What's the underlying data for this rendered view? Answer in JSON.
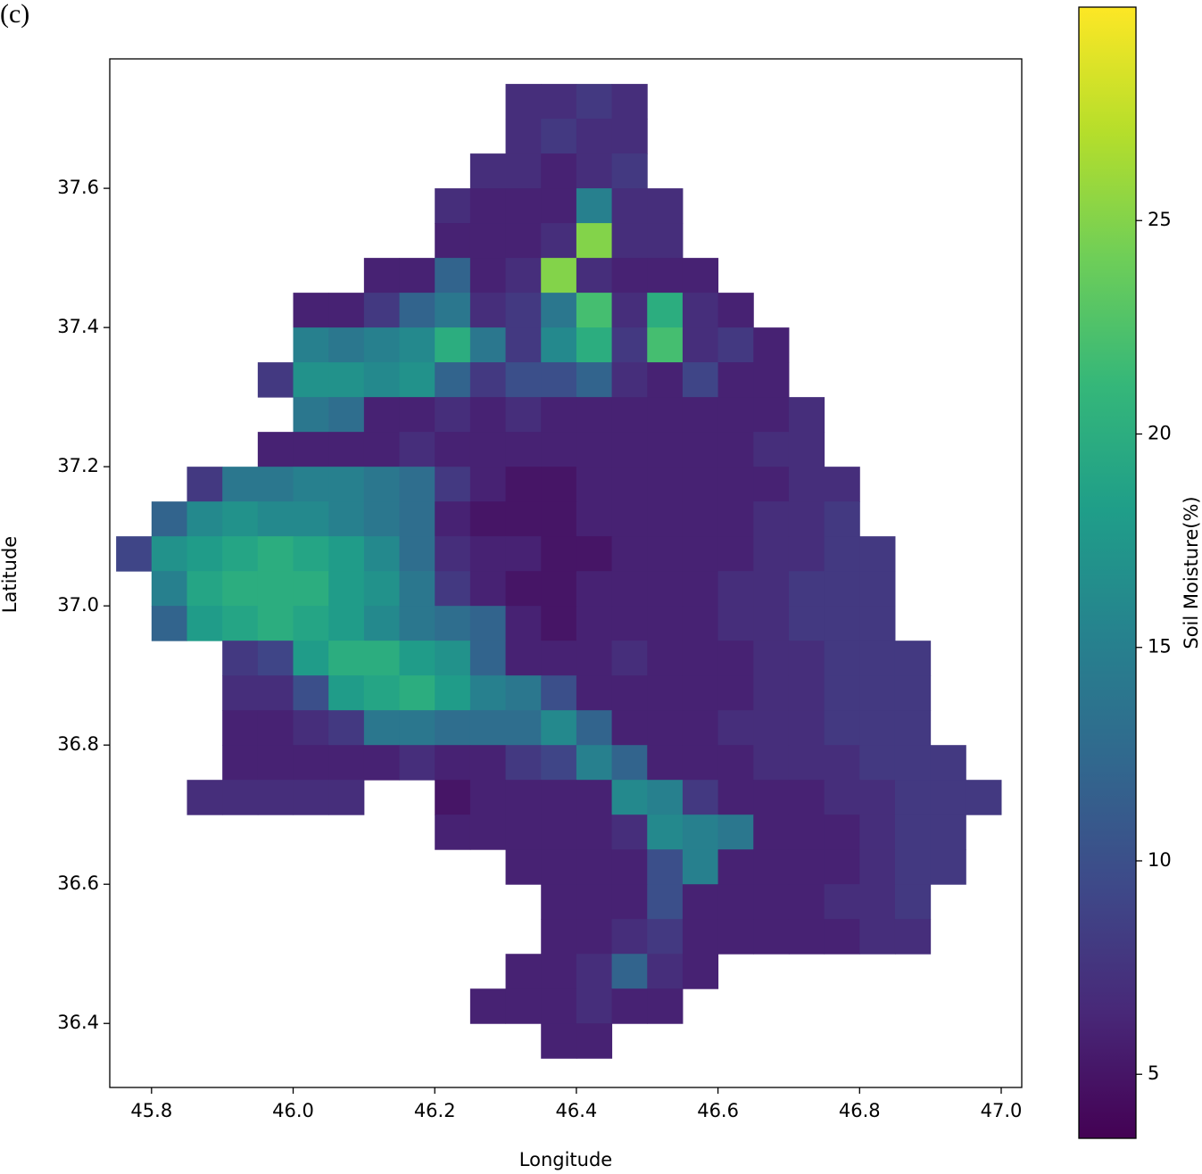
{
  "chart_data": {
    "type": "heatmap",
    "panel_label": "(c)",
    "xlabel": "Longitude",
    "ylabel": "Latitude",
    "xlim": [
      45.741,
      47.029
    ],
    "ylim": [
      36.308,
      37.786
    ],
    "xticks": [
      45.8,
      {
        "value": 46,
        "label": "46.0"
      },
      46.2,
      46.4,
      46.6,
      46.8,
      {
        "value": 47,
        "label": "47.0"
      }
    ],
    "yticks": [
      36.4,
      36.6,
      36.8,
      {
        "value": 37,
        "label": "37.0"
      },
      37.2,
      37.4,
      37.6
    ],
    "colormap": "viridis",
    "clim": [
      3.5,
      30
    ],
    "cticks": [
      5,
      10,
      15,
      20,
      25
    ],
    "clabel": "Soil Moisture(%)",
    "x": [
      45.775,
      45.825,
      45.875,
      45.925,
      45.975,
      46.025,
      46.075,
      46.125,
      46.175,
      46.225,
      46.275,
      46.325,
      46.375,
      46.425,
      46.475,
      46.525,
      46.575,
      46.625,
      46.675,
      46.725,
      46.775,
      46.825,
      46.875,
      46.925,
      46.975
    ],
    "y": [
      37.725,
      37.675,
      37.625,
      37.575,
      37.525,
      37.475,
      37.425,
      37.375,
      37.325,
      37.275,
      37.225,
      37.175,
      37.125,
      37.075,
      37.025,
      36.975,
      36.925,
      36.875,
      36.825,
      36.775,
      36.725,
      36.675,
      36.625,
      36.575,
      36.525,
      36.475,
      36.425,
      36.375
    ],
    "z": [
      [
        null,
        null,
        null,
        null,
        null,
        null,
        null,
        null,
        null,
        null,
        null,
        7,
        7,
        8,
        7,
        null,
        null,
        null,
        null,
        null,
        null,
        null,
        null,
        null,
        null
      ],
      [
        null,
        null,
        null,
        null,
        null,
        null,
        null,
        null,
        null,
        null,
        null,
        7,
        8,
        7,
        7,
        null,
        null,
        null,
        null,
        null,
        null,
        null,
        null,
        null,
        null
      ],
      [
        null,
        null,
        null,
        null,
        null,
        null,
        null,
        null,
        null,
        null,
        7,
        7,
        6,
        7,
        8,
        null,
        null,
        null,
        null,
        null,
        null,
        null,
        null,
        null,
        null
      ],
      [
        null,
        null,
        null,
        null,
        null,
        null,
        null,
        null,
        null,
        7,
        6,
        6,
        6,
        15,
        7,
        7,
        null,
        null,
        null,
        null,
        null,
        null,
        null,
        null,
        null
      ],
      [
        null,
        null,
        null,
        null,
        null,
        null,
        null,
        null,
        null,
        6,
        6,
        6,
        7,
        25,
        7,
        7,
        null,
        null,
        null,
        null,
        null,
        null,
        null,
        null,
        null
      ],
      [
        null,
        null,
        null,
        null,
        null,
        null,
        null,
        6,
        6,
        12,
        6,
        7,
        25,
        7,
        6,
        6,
        6,
        null,
        null,
        null,
        null,
        null,
        null,
        null,
        null
      ],
      [
        null,
        null,
        null,
        null,
        null,
        6,
        6,
        8,
        12,
        14,
        7,
        8,
        14,
        22,
        7,
        20,
        7,
        6,
        null,
        null,
        null,
        null,
        null,
        null,
        null
      ],
      [
        null,
        null,
        null,
        null,
        null,
        15,
        14,
        15,
        16,
        20,
        14,
        8,
        16,
        20,
        8,
        22,
        7,
        8,
        6,
        null,
        null,
        null,
        null,
        null,
        null
      ],
      [
        null,
        null,
        null,
        null,
        8,
        17,
        17,
        16,
        17,
        12,
        8,
        10,
        10,
        12,
        7,
        6,
        9,
        6,
        6,
        null,
        null,
        null,
        null,
        null,
        null
      ],
      [
        null,
        null,
        null,
        null,
        null,
        14,
        13,
        6,
        6,
        7,
        6,
        7,
        6,
        6,
        6,
        6,
        6,
        6,
        6,
        7,
        null,
        null,
        null,
        null,
        null
      ],
      [
        null,
        null,
        null,
        null,
        6,
        6,
        6,
        6,
        7,
        6,
        6,
        6,
        6,
        6,
        6,
        6,
        6,
        6,
        7,
        7,
        null,
        null,
        null,
        null,
        null
      ],
      [
        null,
        null,
        8,
        14,
        14,
        15,
        15,
        14,
        13,
        8,
        6,
        5,
        5,
        6,
        6,
        6,
        6,
        6,
        6,
        7,
        7,
        null,
        null,
        null,
        null
      ],
      [
        null,
        12,
        16,
        17,
        16,
        16,
        15,
        14,
        13,
        6,
        5,
        5,
        5,
        6,
        6,
        6,
        6,
        6,
        7,
        7,
        8,
        null,
        null,
        null,
        null
      ],
      [
        9,
        17,
        18,
        19,
        20,
        19,
        18,
        16,
        13,
        7,
        6,
        6,
        5,
        5,
        6,
        6,
        6,
        6,
        7,
        7,
        8,
        8,
        null,
        null,
        null
      ],
      [
        null,
        15,
        19,
        20,
        20,
        20,
        18,
        17,
        14,
        8,
        6,
        5,
        5,
        6,
        6,
        6,
        6,
        7,
        7,
        8,
        8,
        8,
        null,
        null,
        null
      ],
      [
        null,
        12,
        18,
        19,
        20,
        19,
        18,
        16,
        14,
        13,
        12,
        6,
        5,
        6,
        6,
        6,
        6,
        7,
        7,
        8,
        8,
        8,
        null,
        null,
        null
      ],
      [
        null,
        null,
        null,
        8,
        9,
        18,
        20,
        20,
        18,
        17,
        12,
        6,
        6,
        6,
        7,
        6,
        6,
        6,
        7,
        7,
        8,
        8,
        8,
        null,
        null
      ],
      [
        null,
        null,
        null,
        7,
        7,
        10,
        18,
        19,
        20,
        18,
        15,
        14,
        10,
        6,
        6,
        6,
        6,
        6,
        7,
        7,
        8,
        8,
        8,
        null,
        null
      ],
      [
        null,
        null,
        null,
        6,
        6,
        7,
        8,
        14,
        14,
        13,
        13,
        13,
        16,
        12,
        6,
        6,
        6,
        7,
        7,
        7,
        8,
        8,
        8,
        null,
        null
      ],
      [
        null,
        null,
        null,
        6,
        6,
        6,
        6,
        6,
        7,
        6,
        6,
        8,
        9,
        15,
        12,
        6,
        6,
        6,
        7,
        7,
        7,
        8,
        8,
        8,
        null
      ],
      [
        null,
        null,
        7,
        7,
        7,
        7,
        7,
        null,
        null,
        5,
        6,
        6,
        6,
        6,
        16,
        15,
        8,
        6,
        6,
        6,
        7,
        7,
        8,
        8,
        8
      ],
      [
        null,
        null,
        null,
        null,
        null,
        null,
        null,
        null,
        null,
        6,
        6,
        6,
        6,
        6,
        7,
        16,
        15,
        14,
        6,
        6,
        6,
        7,
        8,
        8,
        null
      ],
      [
        null,
        null,
        null,
        null,
        null,
        null,
        null,
        null,
        null,
        null,
        null,
        6,
        6,
        6,
        6,
        10,
        15,
        6,
        6,
        6,
        6,
        7,
        8,
        8,
        null
      ],
      [
        null,
        null,
        null,
        null,
        null,
        null,
        null,
        null,
        null,
        null,
        null,
        null,
        6,
        6,
        6,
        10,
        6,
        6,
        6,
        6,
        7,
        7,
        8,
        null,
        null
      ],
      [
        null,
        null,
        null,
        null,
        null,
        null,
        null,
        null,
        null,
        null,
        null,
        null,
        6,
        6,
        7,
        8,
        6,
        6,
        6,
        6,
        6,
        7,
        7,
        null,
        null
      ],
      [
        null,
        null,
        null,
        null,
        null,
        null,
        null,
        null,
        null,
        null,
        null,
        6,
        6,
        7,
        12,
        7,
        6,
        null,
        null,
        null,
        null,
        null,
        null,
        null,
        null
      ],
      [
        null,
        null,
        null,
        null,
        null,
        null,
        null,
        null,
        null,
        null,
        6,
        6,
        6,
        7,
        6,
        6,
        null,
        null,
        null,
        null,
        null,
        null,
        null,
        null,
        null
      ],
      [
        null,
        null,
        null,
        null,
        null,
        null,
        null,
        null,
        null,
        null,
        null,
        null,
        6,
        6,
        null,
        null,
        null,
        null,
        null,
        null,
        null,
        null,
        null,
        null,
        null
      ]
    ]
  }
}
